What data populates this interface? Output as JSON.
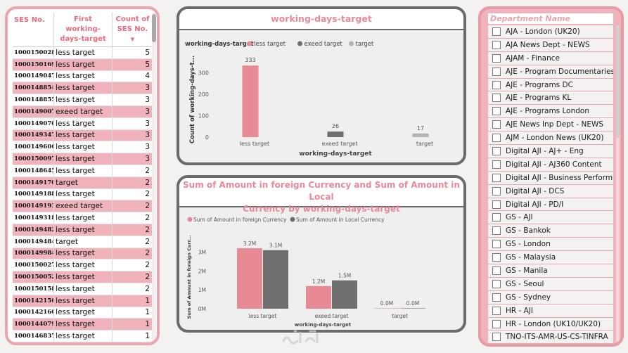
{
  "table": {
    "headers": [
      "SES No.",
      "First working-days-target",
      "Count of SES No."
    ],
    "rows": [
      {
        "ses": "1000150028",
        "cat": "less target",
        "count": "5",
        "hl": false
      },
      {
        "ses": "1000150169",
        "cat": "less target",
        "count": "5",
        "hl": true
      },
      {
        "ses": "1000149047",
        "cat": "less target",
        "count": "4",
        "hl": false
      },
      {
        "ses": "1000148854",
        "cat": "less target",
        "count": "3",
        "hl": true
      },
      {
        "ses": "1000148855",
        "cat": "less target",
        "count": "3",
        "hl": false
      },
      {
        "ses": "1000149007",
        "cat": "exeed target",
        "count": "3",
        "hl": true
      },
      {
        "ses": "1000149070",
        "cat": "less target",
        "count": "3",
        "hl": false
      },
      {
        "ses": "1000149347",
        "cat": "less target",
        "count": "3",
        "hl": true
      },
      {
        "ses": "1000149606",
        "cat": "less target",
        "count": "3",
        "hl": false
      },
      {
        "ses": "1000150097",
        "cat": "less target",
        "count": "3",
        "hl": true
      },
      {
        "ses": "1000148645",
        "cat": "less target",
        "count": "2",
        "hl": false
      },
      {
        "ses": "1000149170",
        "cat": "target",
        "count": "2",
        "hl": true
      },
      {
        "ses": "1000149188",
        "cat": "less target",
        "count": "2",
        "hl": false
      },
      {
        "ses": "1000149193",
        "cat": "exeed target",
        "count": "2",
        "hl": true
      },
      {
        "ses": "1000149318",
        "cat": "less target",
        "count": "2",
        "hl": false
      },
      {
        "ses": "1000149482",
        "cat": "less target",
        "count": "2",
        "hl": true
      },
      {
        "ses": "1000149484",
        "cat": "target",
        "count": "2",
        "hl": false
      },
      {
        "ses": "1000149984",
        "cat": "less target",
        "count": "2",
        "hl": true
      },
      {
        "ses": "1000150027",
        "cat": "less target",
        "count": "2",
        "hl": false
      },
      {
        "ses": "1000150052",
        "cat": "less target",
        "count": "2",
        "hl": true
      },
      {
        "ses": "1000150158",
        "cat": "less target",
        "count": "2",
        "hl": false
      },
      {
        "ses": "1000142156",
        "cat": "less target",
        "count": "1",
        "hl": true
      },
      {
        "ses": "1000142160",
        "cat": "less target",
        "count": "1",
        "hl": false
      },
      {
        "ses": "1000144079",
        "cat": "less target",
        "count": "1",
        "hl": true
      },
      {
        "ses": "1000146837",
        "cat": "less target",
        "count": "1",
        "hl": false
      }
    ]
  },
  "chart1": {
    "title": "working-days-target",
    "legend_title": "working-days-target",
    "chart_data": {
      "type": "bar",
      "categories": [
        "less target",
        "exeed target",
        "target"
      ],
      "values": [
        333,
        26,
        17
      ],
      "colors": [
        "#e88a94",
        "#6f6f6f",
        "#b3b3b3"
      ],
      "xlabel": "working-days-target",
      "ylabel": "Count of working-days-t...",
      "yticks": [
        0,
        100,
        200,
        300
      ],
      "ylim": [
        0,
        350
      ]
    }
  },
  "chart2": {
    "title_line1": "Sum of Amount in foreign Currency and Sum of Amount in Local",
    "title_line2": "Currency by working-days-target",
    "chart_data": {
      "type": "bar",
      "categories": [
        "less target",
        "exeed target",
        "target"
      ],
      "series": [
        {
          "name": "Sum of Amount in foreign Currency",
          "values": [
            3.2,
            1.2,
            0.0
          ],
          "labels": [
            "3.2M",
            "1.2M",
            "0.0M"
          ],
          "color": "#e88a94"
        },
        {
          "name": "Sum of Amount in Local Currency",
          "values": [
            3.1,
            1.5,
            0.0
          ],
          "labels": [
            "3.1M",
            "1.5M",
            "0.0M"
          ],
          "color": "#6f6f6f"
        }
      ],
      "xlabel": "working-days-target",
      "ylabel": "Sum of Amount in foreign Curr...",
      "yticks": [
        "0M",
        "1M",
        "2M",
        "3M"
      ],
      "ylim": [
        0,
        3.5
      ]
    }
  },
  "slicer": {
    "header": "Department Name",
    "items": [
      "AJA - London (UK20)",
      "AJA News Dept - NEWS",
      "AJAM - Finance",
      "AJE - Program Documentaries...",
      "AJE - Programs DC",
      "AJE - Programs KL",
      "AJE - Programs London",
      "AJE News Inp Dept - NEWS",
      "AJM - London News (UK20)",
      "Digital AJI - AJ+ - Eng",
      "Digital AJI - AJ360 Content",
      "Digital AJI - Business Perform...",
      "Digital AJI - DCS",
      "Digital AJI - PD/I",
      "GS - AJI",
      "GS - Bankok",
      "GS - London",
      "GS - Malaysia",
      "GS - Manila",
      "GS - Seoul",
      "GS - Sydney",
      "HR - AJI",
      "HR - London (UK10/UK20)",
      "TNO-ITS-AMR-US-CS-TINFRA"
    ]
  }
}
